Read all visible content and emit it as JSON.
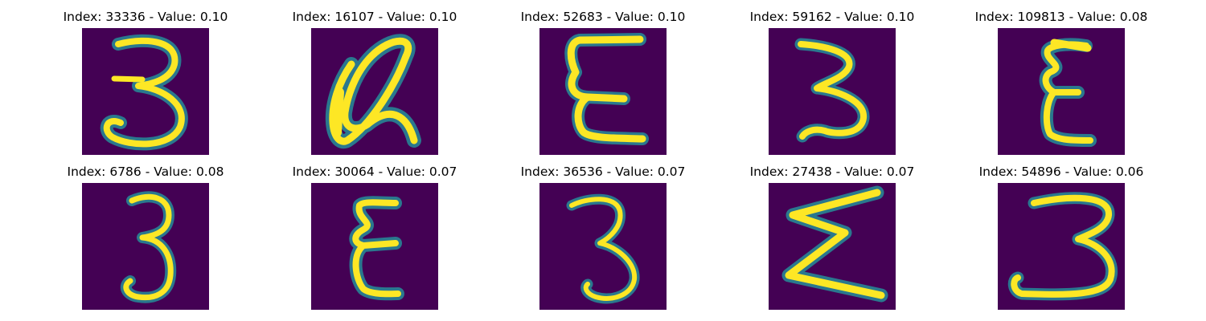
{
  "colors": {
    "background": "#440154",
    "stroke_core": "#fde725",
    "stroke_mid": "#21a685",
    "stroke_edge": "#2a788e",
    "title_text": "#000000"
  },
  "panels": [
    {
      "title": "Index: 33336 - Value: 0.10",
      "glyph": "3"
    },
    {
      "title": "Index: 16107 - Value: 0.10",
      "glyph": "@"
    },
    {
      "title": "Index: 52683 - Value: 0.10",
      "glyph": "E"
    },
    {
      "title": "Index: 59162 - Value: 0.10",
      "glyph": "3"
    },
    {
      "title": "Index: 109813 - Value: 0.08",
      "glyph": "E"
    },
    {
      "title": "Index: 6786 - Value: 0.08",
      "glyph": "3"
    },
    {
      "title": "Index: 30064 - Value: 0.07",
      "glyph": "E"
    },
    {
      "title": "Index: 36536 - Value: 0.07",
      "glyph": "3"
    },
    {
      "title": "Index: 27438 - Value: 0.07",
      "glyph": "Σ"
    },
    {
      "title": "Index: 54896 - Value: 0.06",
      "glyph": "3"
    }
  ]
}
